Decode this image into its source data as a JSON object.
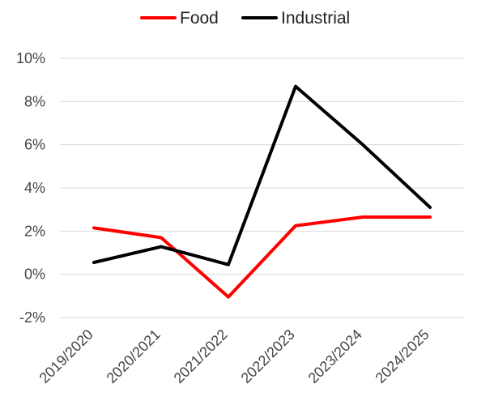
{
  "chart_data": {
    "type": "line",
    "categories": [
      "2019/2020",
      "2020/2021",
      "2021/2022",
      "2022/2023",
      "2023/2024",
      "2024/2025"
    ],
    "series": [
      {
        "name": "Food",
        "values": [
          2.15,
          1.7,
          -1.05,
          2.25,
          2.65,
          2.65
        ],
        "color": "#ff0000"
      },
      {
        "name": "Industrial",
        "values": [
          0.55,
          1.28,
          0.45,
          8.7,
          6.0,
          3.1
        ],
        "color": "#000000"
      }
    ],
    "y_ticks": [
      "10%",
      "8%",
      "6%",
      "4%",
      "2%",
      "0%",
      "-2%"
    ],
    "ylim": [
      -2,
      10
    ],
    "grid": true,
    "legend_position": "top-center",
    "title": "",
    "xlabel": "",
    "ylabel": ""
  }
}
